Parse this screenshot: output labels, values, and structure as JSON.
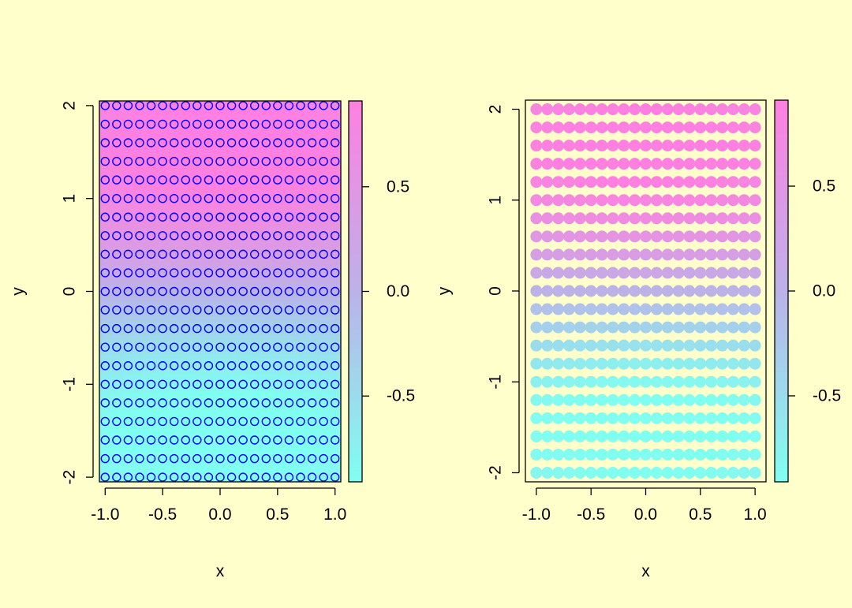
{
  "background": "#FFFFCC",
  "palette": {
    "low": "#80FFF0",
    "mid": "#BCB2E8",
    "high": "#FF80E0",
    "open_point": "#0000FF"
  },
  "chart_data": [
    {
      "type": "heatmap",
      "overlay": "scatter",
      "marker": "open-circle",
      "xlabel": "x",
      "ylabel": "y",
      "xlim": [
        -1.05,
        1.05
      ],
      "ylim": [
        -2.05,
        2.05
      ],
      "x_ticks": [
        -1.0,
        -0.5,
        0.0,
        0.5,
        1.0
      ],
      "x_tick_labels": [
        "-1.0",
        "-0.5",
        "0.0",
        "0.5",
        "1.0"
      ],
      "y_ticks": [
        -2,
        -1,
        0,
        1,
        2
      ],
      "y_tick_labels": [
        "-2",
        "-1",
        "0",
        "1",
        "2"
      ],
      "x_points": [
        -1.0,
        -0.9,
        -0.8,
        -0.7,
        -0.6,
        -0.5,
        -0.4,
        -0.3,
        -0.2,
        -0.1,
        0.0,
        0.1,
        0.2,
        0.3,
        0.4,
        0.5,
        0.6,
        0.7,
        0.8,
        0.9,
        1.0
      ],
      "y_points": [
        -2.0,
        -1.8,
        -1.6,
        -1.4,
        -1.2,
        -1.0,
        -0.8,
        -0.6,
        -0.4,
        -0.2,
        0.0,
        0.2,
        0.4,
        0.6,
        0.8,
        1.0,
        1.2,
        1.4,
        1.6,
        1.8,
        2.0
      ],
      "z_function": "sin(y)*cos(0.5*x)",
      "colorbar": {
        "range": [
          -0.91,
          0.91
        ],
        "ticks": [
          -0.5,
          0.0,
          0.5
        ],
        "tick_labels": [
          "-0.5",
          "0.0",
          "0.5"
        ]
      },
      "grid": false
    },
    {
      "type": "scatter",
      "marker": "filled-circle",
      "xlabel": "x",
      "ylabel": "y",
      "xlim": [
        -1.1,
        1.1
      ],
      "ylim": [
        -2.1,
        2.1
      ],
      "x_ticks": [
        -1.0,
        -0.5,
        0.0,
        0.5,
        1.0
      ],
      "x_tick_labels": [
        "-1.0",
        "-0.5",
        "0.0",
        "0.5",
        "1.0"
      ],
      "y_ticks": [
        -2,
        -1,
        0,
        1,
        2
      ],
      "y_tick_labels": [
        "-2",
        "-1",
        "0",
        "1",
        "2"
      ],
      "x_points": [
        -1.0,
        -0.9,
        -0.8,
        -0.7,
        -0.6,
        -0.5,
        -0.4,
        -0.3,
        -0.2,
        -0.1,
        0.0,
        0.1,
        0.2,
        0.3,
        0.4,
        0.5,
        0.6,
        0.7,
        0.8,
        0.9,
        1.0
      ],
      "y_points": [
        -2.0,
        -1.8,
        -1.6,
        -1.4,
        -1.2,
        -1.0,
        -0.8,
        -0.6,
        -0.4,
        -0.2,
        0.0,
        0.2,
        0.4,
        0.6,
        0.8,
        1.0,
        1.2,
        1.4,
        1.6,
        1.8,
        2.0
      ],
      "z_function": "sin(y)*cos(0.5*x)",
      "colorbar": {
        "range": [
          -0.91,
          0.91
        ],
        "ticks": [
          -0.5,
          0.0,
          0.5
        ],
        "tick_labels": [
          "-0.5",
          "0.0",
          "0.5"
        ]
      },
      "grid": false
    }
  ]
}
